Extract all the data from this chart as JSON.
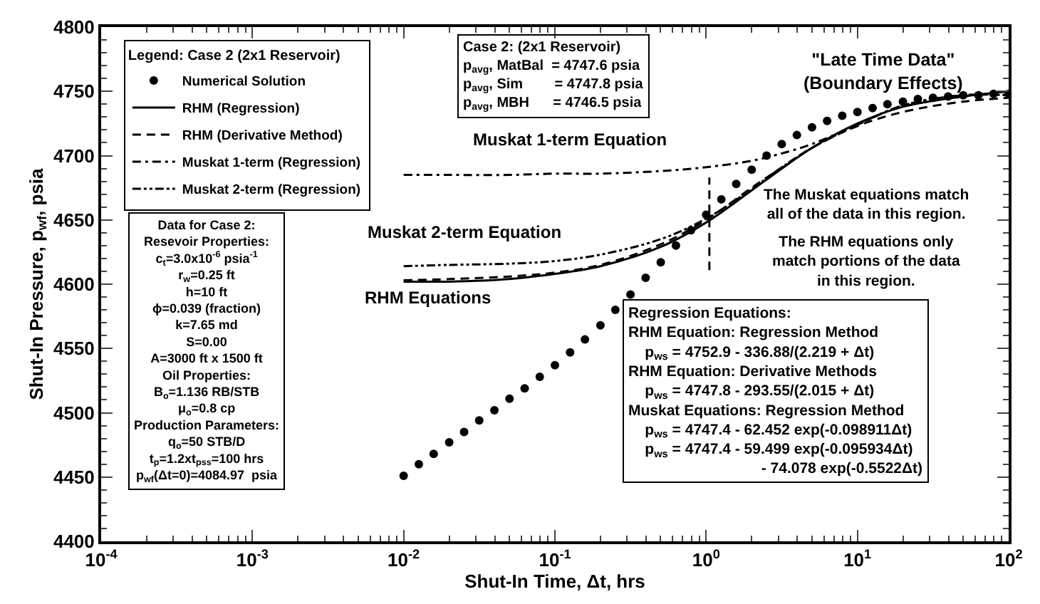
{
  "chart_data": {
    "type": "line",
    "xlabel": "Shut-In Time, Δt, hrs",
    "ylabel": "Shut-In Pressure, p$_{wf}$, psia",
    "legend_title": "Legend: Case 2 (2x1 Reservoir)",
    "legend": "top left",
    "log": "x",
    "xlim": [
      0.0001,
      100
    ],
    "xticks": [
      {
        "value": 0.0001,
        "label": "10$^{-4}$"
      },
      {
        "value": 0.001,
        "label": "10$^{-3}$"
      },
      {
        "value": 0.01,
        "label": "10$^{-2}$"
      },
      {
        "value": 0.1,
        "label": "10$^{-1}$"
      },
      {
        "value": 1,
        "label": "10$^{0}$"
      },
      {
        "value": 10,
        "label": "10$^{1}$"
      },
      {
        "value": 100,
        "label": "10$^{2}$"
      }
    ],
    "ylim": [
      4400,
      4800
    ],
    "yticks": [
      4400,
      4450,
      4500,
      4550,
      4600,
      4650,
      4700,
      4750,
      4800
    ],
    "series": [
      {
        "name": "Numerical Solution",
        "type": "scatter",
        "marker": "circle",
        "color": "#000000",
        "x": [
          0.01,
          0.0126,
          0.0158,
          0.02,
          0.0251,
          0.0316,
          0.0398,
          0.0501,
          0.0631,
          0.0794,
          0.1,
          0.126,
          0.158,
          0.2,
          0.251,
          0.316,
          0.398,
          0.501,
          0.631,
          0.794,
          1,
          1.26,
          1.58,
          2,
          2.51,
          3.16,
          3.98,
          5.01,
          6.31,
          7.94,
          10,
          12.6,
          15.8,
          20,
          25.1,
          31.6,
          39.8,
          50.1,
          63.1,
          79.4,
          100
        ],
        "values": [
          4451,
          4460,
          4468,
          4477,
          4485,
          4494,
          4502,
          4511,
          4519,
          4528,
          4537,
          4547,
          4557,
          4568,
          4580,
          4592,
          4605,
          4617,
          4630,
          4642,
          4654,
          4666,
          4678,
          4689,
          4700,
          4709,
          4716,
          4722,
          4727,
          4731,
          4734,
          4737,
          4740,
          4742,
          4744,
          4745,
          4746,
          4747,
          4747,
          4748,
          4748
        ]
      },
      {
        "name": "RHM (Regression)",
        "marker": "none",
        "line_style": "solid",
        "color": "#000000",
        "x": [
          0.01,
          0.02,
          0.05,
          0.1,
          0.2,
          0.5,
          1,
          2,
          3,
          5,
          10,
          20,
          50,
          100
        ],
        "values": [
          4602,
          4602,
          4604,
          4608,
          4614,
          4629,
          4648,
          4673,
          4688,
          4706,
          4725,
          4738,
          4746,
          4750
        ]
      },
      {
        "name": "RHM (Derivative Method)",
        "marker": "none",
        "line_style": "dashed",
        "color": "#000000",
        "x": [
          0.01,
          0.02,
          0.05,
          0.1,
          0.2,
          0.5,
          1,
          2,
          3,
          5,
          10,
          20,
          50,
          100
        ],
        "values": [
          4603,
          4604,
          4606,
          4609,
          4615,
          4631,
          4650,
          4675,
          4689,
          4706,
          4723,
          4734,
          4742,
          4745
        ]
      },
      {
        "name": "Muskat 1-term (Regression)",
        "marker": "none",
        "line_style": "dashdot",
        "color": "#000000",
        "x": [
          0.01,
          0.02,
          0.05,
          0.1,
          0.2,
          0.5,
          1,
          2,
          3,
          5,
          10,
          20,
          50,
          100
        ],
        "values": [
          4685,
          4685,
          4685,
          4686,
          4686,
          4688,
          4691,
          4696,
          4701,
          4709,
          4724,
          4739,
          4747,
          4747
        ]
      },
      {
        "name": "Muskat 2-term (Regression)",
        "marker": "none",
        "line_style": "dashdotdot",
        "color": "#000000",
        "x": [
          0.01,
          0.02,
          0.05,
          0.1,
          0.2,
          0.5,
          1,
          2,
          3,
          5,
          10,
          20,
          50,
          100
        ],
        "values": [
          4614,
          4615,
          4616,
          4618,
          4623,
          4635,
          4651,
          4674,
          4689,
          4706,
          4724,
          4739,
          4747,
          4747
        ]
      },
      {
        "marker": "none",
        "line_style": "dashed",
        "color": "#000000",
        "x": [
          1.05,
          1.05
        ],
        "values": [
          4611,
          4683
        ]
      }
    ],
    "annotations": [
      "Case 2: (2x1 Reservoir)\np$_{avg}$, MatBal  = 4747.6 psia\np$_{avg}$, Sim        = 4747.8 psia\np$_{avg}$, MBH      = 4746.5 psia",
      "Data for Case 2:\nResevoir Properties:\nc$_{t}$=3.0x10$^{-6}$ psia$^{-1}$\nr$_{w}$=0.25 ft\nh=10 ft\nϕ=0.039 (fraction)\nk=7.65 md\nS=0.00\nA=3000 ft x 1500 ft\nOil Properties:\nB$_{o}$=1.136 RB/STB\nμ$_{o}$=0.8 cp\nProduction Parameters:\nq$_{o}$=50 STB/D\nt$_{p}$=1.2xt$_{pss}$=100 hrs\np$_{wf}$(Δt=0)=4084.97  psia",
      "Regression Equations:\nRHM Equation: Regression Method\n    p$_{ws}$ = 4752.9 - 336.88/(2.219 + Δt)\nRHM Equation: Derivative Methods\n    p$_{ws}$ = 4747.8 - 293.55/(2.015 + Δt)\nMuskat Equations: Regression Method\n    p$_{ws}$ = 4747.4 - 62.452 exp(-0.098911Δt)\n    p$_{ws}$ = 4747.4 - 59.499 exp(-0.095934Δt)\n                                - 74.078 exp(-0.5522Δt)",
      "Muskat 1-term Equation",
      "Muskat 2-term Equation",
      "RHM Equations",
      "\"Late Time Data\"\n(Boundary Effects)",
      "The Muskat equations match\nall of the data in this region.",
      "The RHM equations only\nmatch portions of the data\nin this region."
    ]
  }
}
